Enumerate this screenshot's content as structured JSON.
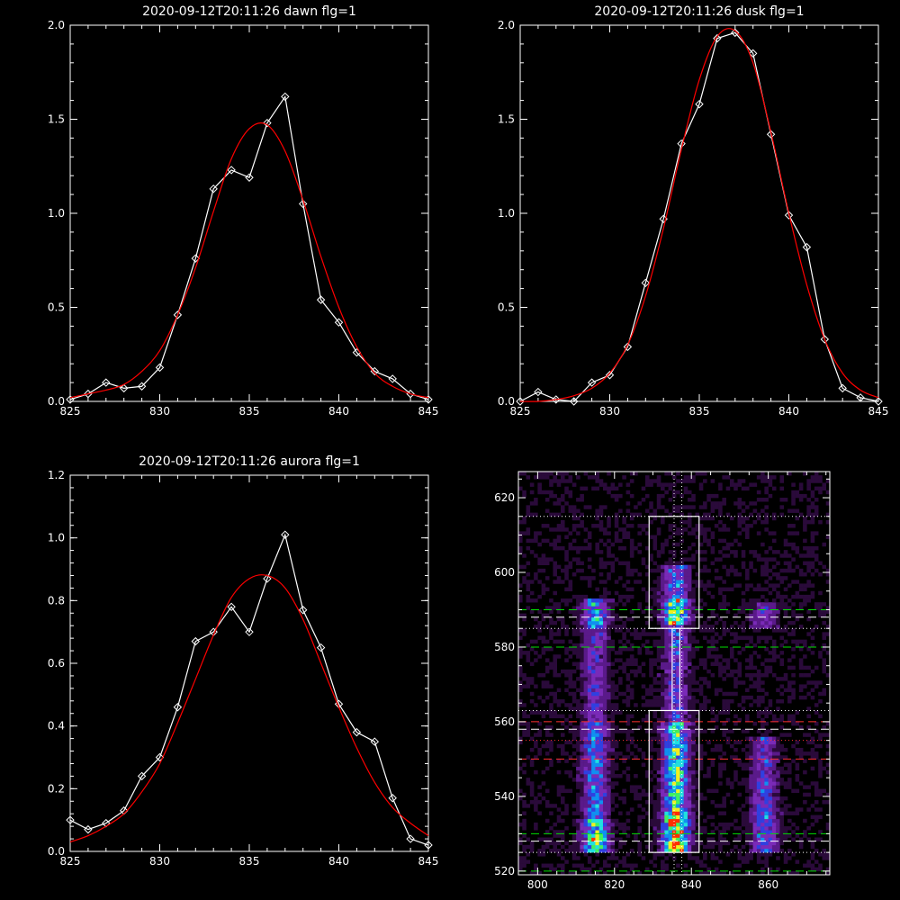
{
  "chart_data": [
    {
      "type": "line",
      "title": "2020-09-12T20:11:26 dawn flg=1",
      "xlim": [
        825,
        845
      ],
      "ylim": [
        0,
        2.0
      ],
      "xticks": [
        "825",
        "830",
        "835",
        "840",
        "845"
      ],
      "yticks": [
        "0.0",
        "0.5",
        "1.0",
        "1.5",
        "2.0"
      ],
      "series": [
        {
          "color": "#ffffff",
          "marker": "diamond",
          "x": [
            825,
            826,
            827,
            828,
            829,
            830,
            831,
            832,
            833,
            834,
            835,
            836,
            837,
            838,
            839,
            840,
            841,
            842,
            843,
            844,
            845
          ],
          "y": [
            0.01,
            0.04,
            0.1,
            0.07,
            0.08,
            0.18,
            0.46,
            0.76,
            1.13,
            1.23,
            1.19,
            1.48,
            1.62,
            1.05,
            0.54,
            0.42,
            0.26,
            0.16,
            0.12,
            0.04,
            0.01
          ]
        },
        {
          "color": "#ff0000",
          "type": "gaussian",
          "x": [
            825,
            826,
            827,
            828,
            829,
            830,
            831,
            832,
            833,
            834,
            835,
            836,
            837,
            838,
            839,
            840,
            841,
            842,
            843,
            844,
            845
          ],
          "y": [
            0.02,
            0.04,
            0.06,
            0.09,
            0.16,
            0.27,
            0.46,
            0.71,
            1.01,
            1.29,
            1.45,
            1.47,
            1.33,
            1.07,
            0.77,
            0.5,
            0.29,
            0.15,
            0.08,
            0.04,
            0.02
          ]
        }
      ]
    },
    {
      "type": "line",
      "title": "2020-09-12T20:11:26 dusk flg=1",
      "xlim": [
        825,
        845
      ],
      "ylim": [
        0,
        2.0
      ],
      "xticks": [
        "825",
        "830",
        "835",
        "840",
        "845"
      ],
      "yticks": [
        "0.0",
        "0.5",
        "1.0",
        "1.5",
        "2.0"
      ],
      "series": [
        {
          "color": "#ffffff",
          "marker": "diamond",
          "x": [
            825,
            826,
            827,
            828,
            829,
            830,
            831,
            832,
            833,
            834,
            835,
            836,
            837,
            838,
            839,
            840,
            841,
            842,
            843,
            844,
            845
          ],
          "y": [
            0.0,
            0.05,
            0.01,
            0.0,
            0.1,
            0.14,
            0.29,
            0.63,
            0.97,
            1.37,
            1.58,
            1.93,
            1.96,
            1.85,
            1.42,
            0.99,
            0.82,
            0.33,
            0.07,
            0.02,
            0.0
          ]
        },
        {
          "color": "#ff0000",
          "type": "gaussian",
          "x": [
            825,
            826,
            827,
            828,
            829,
            830,
            831,
            832,
            833,
            834,
            835,
            836,
            837,
            838,
            839,
            840,
            841,
            842,
            843,
            844,
            845
          ],
          "y": [
            0.0,
            0.0,
            0.01,
            0.03,
            0.07,
            0.15,
            0.3,
            0.56,
            0.92,
            1.34,
            1.71,
            1.94,
            1.97,
            1.8,
            1.43,
            1.0,
            0.62,
            0.33,
            0.15,
            0.06,
            0.02
          ]
        }
      ]
    },
    {
      "type": "line",
      "title": "2020-09-12T20:11:26 aurora flg=1",
      "xlim": [
        825,
        845
      ],
      "ylim": [
        0,
        1.2
      ],
      "xticks": [
        "825",
        "830",
        "835",
        "840",
        "845"
      ],
      "yticks": [
        "0.0",
        "0.2",
        "0.4",
        "0.6",
        "0.8",
        "1.0",
        "1.2"
      ],
      "series": [
        {
          "color": "#ffffff",
          "marker": "diamond",
          "x": [
            825,
            826,
            827,
            828,
            829,
            830,
            831,
            832,
            833,
            834,
            835,
            836,
            837,
            838,
            839,
            840,
            841,
            842,
            843,
            844,
            845
          ],
          "y": [
            0.1,
            0.07,
            0.09,
            0.13,
            0.24,
            0.3,
            0.46,
            0.67,
            0.7,
            0.78,
            0.7,
            0.87,
            1.01,
            0.77,
            0.65,
            0.47,
            0.38,
            0.35,
            0.17,
            0.04,
            0.02
          ]
        },
        {
          "color": "#ff0000",
          "type": "gaussian",
          "x": [
            825,
            826,
            827,
            828,
            829,
            830,
            831,
            832,
            833,
            834,
            835,
            836,
            837,
            838,
            839,
            840,
            841,
            842,
            843,
            844,
            845
          ],
          "y": [
            0.03,
            0.05,
            0.08,
            0.12,
            0.19,
            0.28,
            0.41,
            0.55,
            0.69,
            0.81,
            0.87,
            0.88,
            0.84,
            0.74,
            0.6,
            0.46,
            0.33,
            0.22,
            0.14,
            0.09,
            0.05
          ]
        }
      ]
    },
    {
      "type": "heatmap",
      "title": "",
      "xlim": [
        795,
        876
      ],
      "ylim": [
        519,
        627
      ],
      "xticks": [
        "800",
        "820",
        "840",
        "860"
      ],
      "yticks": [
        "520",
        "540",
        "560",
        "580",
        "600",
        "620"
      ],
      "colormap": [
        "#000000",
        "#2a0a3a",
        "#5a1a8a",
        "#7a2ab8",
        "#3040e0",
        "#1090f0",
        "#20e0e0",
        "#40f060",
        "#f0f020",
        "#ff3000"
      ],
      "bright_columns": [
        {
          "x": 815,
          "segments": [
            [
              525,
              534,
              0.75
            ],
            [
              534,
              560,
              0.45
            ],
            [
              585,
              593,
              0.55
            ],
            [
              560,
              585,
              0.3
            ]
          ]
        },
        {
          "x": 836,
          "segments": [
            [
              525,
              536,
              1.0
            ],
            [
              536,
              560,
              0.7
            ],
            [
              586,
              593,
              0.85
            ],
            [
              560,
              586,
              0.35
            ],
            [
              593,
              602,
              0.45
            ]
          ]
        },
        {
          "x": 859,
          "segments": [
            [
              525,
              545,
              0.4
            ],
            [
              545,
              556,
              0.35
            ],
            [
              585,
              592,
              0.3
            ]
          ]
        }
      ],
      "boxes": [
        {
          "x": [
            829,
            842
          ],
          "y": [
            585,
            615
          ]
        },
        {
          "x": [
            829,
            842
          ],
          "y": [
            525,
            563
          ]
        }
      ],
      "stem": {
        "x": [
          835,
          837
        ],
        "y": [
          563,
          585
        ]
      },
      "vlines": [
        835.5,
        837.5
      ],
      "hlines": [
        {
          "y": 615,
          "color": "#ffffff",
          "style": "dotted"
        },
        {
          "y": 590,
          "color": "#00e000",
          "style": "dashed"
        },
        {
          "y": 588,
          "color": "#ffffff",
          "style": "dashed"
        },
        {
          "y": 585,
          "color": "#ffffff",
          "style": "dotted"
        },
        {
          "y": 580,
          "color": "#00e000",
          "style": "dashed"
        },
        {
          "y": 563,
          "color": "#ffffff",
          "style": "dotted"
        },
        {
          "y": 560,
          "color": "#ff3030",
          "style": "dashed"
        },
        {
          "y": 558,
          "color": "#ffffff",
          "style": "dashed"
        },
        {
          "y": 555,
          "color": "#ff3030",
          "style": "dotted"
        },
        {
          "y": 550,
          "color": "#ff3030",
          "style": "dashed"
        },
        {
          "y": 530,
          "color": "#00e000",
          "style": "dashed"
        },
        {
          "y": 528,
          "color": "#ffffff",
          "style": "dashed"
        },
        {
          "y": 525,
          "color": "#ffffff",
          "style": "dotted"
        },
        {
          "y": 520,
          "color": "#00e000",
          "style": "dashed"
        }
      ]
    }
  ]
}
